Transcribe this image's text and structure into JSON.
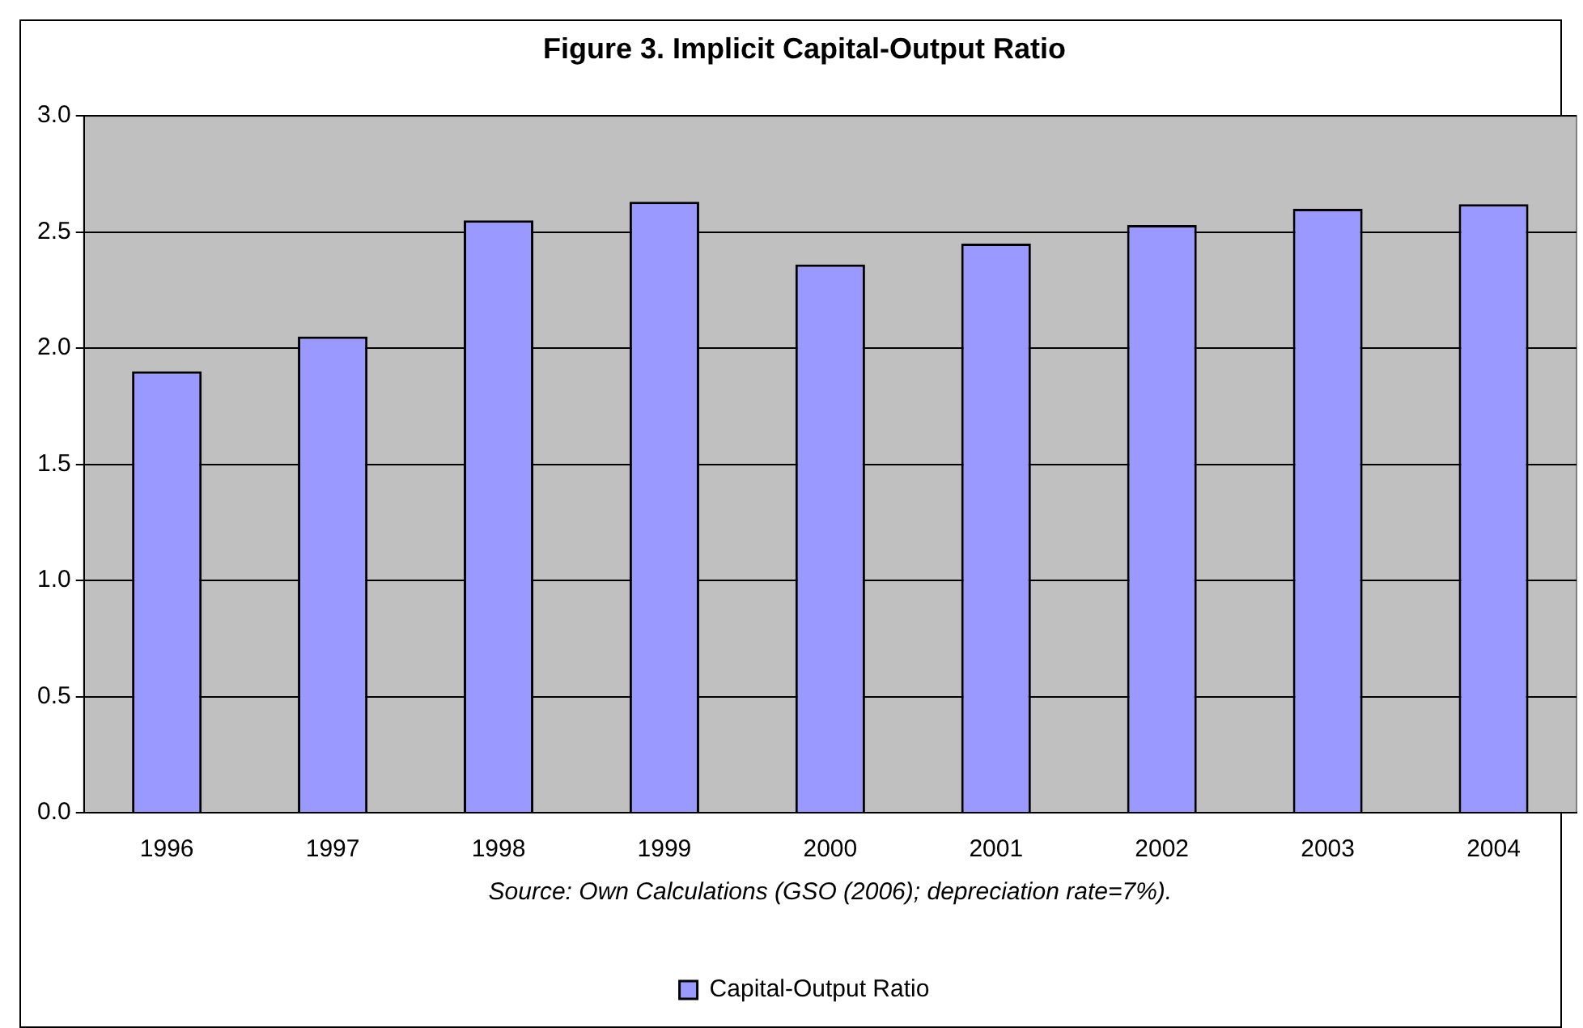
{
  "chart_data": {
    "type": "bar",
    "title": "Figure 3. Implicit Capital-Output Ratio",
    "categories": [
      "1996",
      "1997",
      "1998",
      "1999",
      "2000",
      "2001",
      "2002",
      "2003",
      "2004"
    ],
    "series": [
      {
        "name": "Capital-Output Ratio",
        "color": "#9999ff",
        "values": [
          1.9,
          2.05,
          2.55,
          2.63,
          2.36,
          2.45,
          2.53,
          2.6,
          2.62
        ]
      }
    ],
    "ylim": [
      0,
      3
    ],
    "yticks": [
      {
        "value": 0,
        "label": "0.0"
      },
      {
        "value": 0.5,
        "label": "0.5"
      },
      {
        "value": 1,
        "label": "1.0"
      },
      {
        "value": 1.5,
        "label": "1.5"
      },
      {
        "value": 2,
        "label": "2.0"
      },
      {
        "value": 2.5,
        "label": "2.5"
      },
      {
        "value": 3,
        "label": "3.0"
      }
    ],
    "grid": "y",
    "legend": "bottom",
    "annotations": [
      "Source: Own Calculations (GSO (2006); depreciation rate=7%)."
    ]
  }
}
